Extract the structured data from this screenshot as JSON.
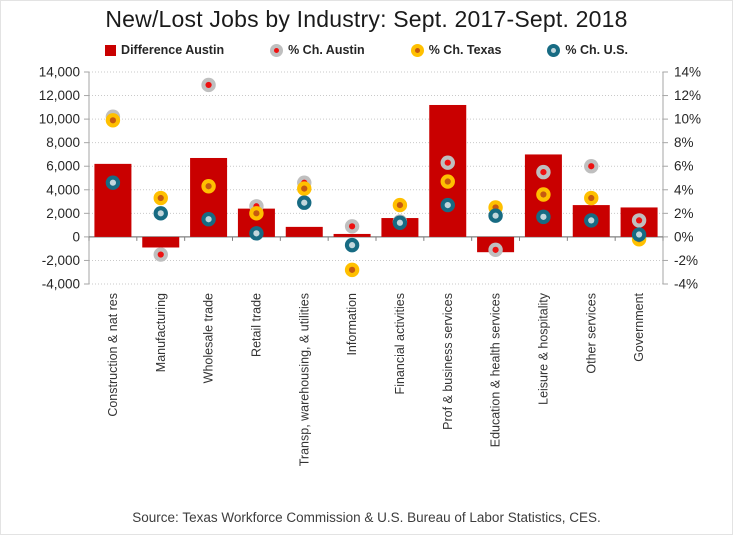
{
  "title": "New/Lost Jobs by Industry: Sept. 2017-Sept. 2018",
  "source": "Source: Texas Workforce Commission & U.S. Bureau of Labor Statistics, CES.",
  "colors": {
    "bar_red": "#C90000",
    "austin_ring": "#BFBFBF",
    "austin_dot": "#EE1111",
    "texas_ring": "#FFC000",
    "texas_dot": "#C55A11",
    "us_ring": "#176B83",
    "us_dot": "#C2D6DC",
    "gridline": "#C9C9C9",
    "axis_line": "#A6A6A6",
    "zero_line": "#808080",
    "tick_text": "#262626",
    "category_text": "#333333"
  },
  "legend": [
    {
      "label": "Difference Austin",
      "marker": "square",
      "ring": "#C90000",
      "dot": "#C90000"
    },
    {
      "label": "% Ch. Austin",
      "marker": "donut",
      "ring": "#BFBFBF",
      "dot": "#EE1111"
    },
    {
      "label": "% Ch. Texas",
      "marker": "donut",
      "ring": "#FFC000",
      "dot": "#C55A11"
    },
    {
      "label": "% Ch. U.S.",
      "marker": "donut",
      "ring": "#176B83",
      "dot": "#C2D6DC"
    }
  ],
  "chart_data": {
    "type": "bar",
    "subtype": "combo-bar-with-percent-points",
    "title": "New/Lost Jobs by Industry: Sept. 2017-Sept. 2018",
    "categories": [
      "Construction & nat res",
      "Manufacturing",
      "Wholesale trade",
      "Retail trade",
      "Transp, warehousing, & utilities",
      "Information",
      "Financial activities",
      "Prof & business services",
      "Education & health services",
      "Leisure & hospitality",
      "Other services",
      "Government"
    ],
    "bar_series": {
      "name": "Difference Austin",
      "axis": "left",
      "color": "#C90000",
      "values": [
        6200,
        -900,
        6700,
        2400,
        850,
        250,
        1600,
        11200,
        -1300,
        7000,
        2700,
        2500
      ]
    },
    "point_series": [
      {
        "name": "% Ch. Austin",
        "axis": "right",
        "ring": "#BFBFBF",
        "dot": "#EE1111",
        "values": [
          10.2,
          -1.5,
          12.9,
          2.6,
          4.6,
          0.9,
          1.3,
          6.3,
          -1.1,
          5.5,
          6.0,
          1.4
        ]
      },
      {
        "name": "% Ch. Texas",
        "axis": "right",
        "ring": "#FFC000",
        "dot": "#C55A11",
        "values": [
          9.9,
          3.3,
          4.3,
          2.0,
          4.1,
          -2.8,
          2.7,
          4.7,
          2.5,
          3.6,
          3.3,
          -0.2
        ]
      },
      {
        "name": "% Ch. U.S.",
        "axis": "right",
        "ring": "#176B83",
        "dot": "#C2D6DC",
        "values": [
          4.6,
          2.0,
          1.5,
          0.3,
          2.9,
          -0.7,
          1.2,
          2.7,
          1.8,
          1.7,
          1.4,
          0.2
        ]
      }
    ],
    "left_axis": {
      "min": -4000,
      "max": 14000,
      "step": 2000,
      "tick_labels": [
        "14,000",
        "12,000",
        "10,000",
        "8,000",
        "6,000",
        "4,000",
        "2,000",
        "0",
        "-2,000",
        "-4,000"
      ]
    },
    "right_axis": {
      "min": -4,
      "max": 14,
      "step": 2,
      "tick_labels": [
        "14%",
        "12%",
        "10%",
        "8%",
        "6%",
        "4%",
        "2%",
        "0%",
        "-2%",
        "-4%"
      ]
    },
    "grid": true,
    "legend_position": "top"
  }
}
